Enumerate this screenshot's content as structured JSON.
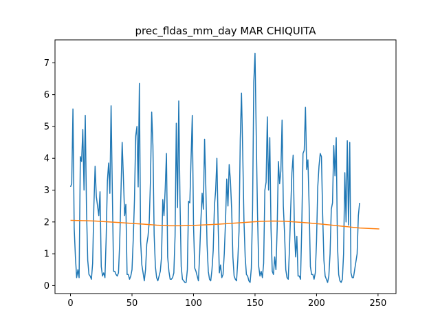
{
  "chart_data": {
    "type": "line",
    "title": "prec_fldas_mm_day MAR CHIQUITA",
    "xlabel": "",
    "ylabel": "",
    "xlim": [
      -12.6,
      264.6
    ],
    "ylim": [
      -0.25,
      7.72
    ],
    "x_ticks": [
      0,
      50,
      100,
      150,
      200,
      250
    ],
    "y_ticks": [
      0,
      1,
      2,
      3,
      4,
      5,
      6,
      7
    ],
    "grid": false,
    "legend": "none",
    "colors": {
      "series1": "#1f77b4",
      "series2": "#ff7f0e"
    },
    "series": [
      {
        "values": [
          3.1,
          3.2,
          5.55,
          1.8,
          0.9,
          0.25,
          0.5,
          0.25,
          4.05,
          3.9,
          4.9,
          3.0,
          5.35,
          2.4,
          0.8,
          0.35,
          0.3,
          0.2,
          0.7,
          2.5,
          3.75,
          2.8,
          2.5,
          2.2,
          2.95,
          0.6,
          0.3,
          0.4,
          0.25,
          1.5,
          3.3,
          3.85,
          2.9,
          5.65,
          3.0,
          0.45,
          0.45,
          0.35,
          0.3,
          0.4,
          1.35,
          2.9,
          4.5,
          3.4,
          2.2,
          2.55,
          0.35,
          0.35,
          0.2,
          0.3,
          0.5,
          1.45,
          2.7,
          4.7,
          5.0,
          3.1,
          6.35,
          1.4,
          0.65,
          0.4,
          0.15,
          0.5,
          1.3,
          1.55,
          2.0,
          3.3,
          5.45,
          4.4,
          1.6,
          0.6,
          0.25,
          0.15,
          0.3,
          0.45,
          0.9,
          2.7,
          2.2,
          3.05,
          4.15,
          0.9,
          0.45,
          0.2,
          0.2,
          0.25,
          0.4,
          1.55,
          5.1,
          2.45,
          5.8,
          2.7,
          0.6,
          0.2,
          0.15,
          0.1,
          0.1,
          0.5,
          2.65,
          2.6,
          4.0,
          5.35,
          1.9,
          0.55,
          0.45,
          0.3,
          0.15,
          1.0,
          2.05,
          2.9,
          2.4,
          4.6,
          3.1,
          1.3,
          0.45,
          0.2,
          0.15,
          0.5,
          1.1,
          2.5,
          3.0,
          4.0,
          1.95,
          0.4,
          0.65,
          0.25,
          0.35,
          1.0,
          2.0,
          3.35,
          2.5,
          3.8,
          3.3,
          2.4,
          0.9,
          0.3,
          0.2,
          0.15,
          0.8,
          1.7,
          4.6,
          6.05,
          4.2,
          2.05,
          0.9,
          0.35,
          0.3,
          0.15,
          0.1,
          0.55,
          2.4,
          6.4,
          7.3,
          4.7,
          2.3,
          0.6,
          0.3,
          0.45,
          0.25,
          0.7,
          3.0,
          3.25,
          5.3,
          3.0,
          4.65,
          1.8,
          0.45,
          0.35,
          0.9,
          0.5,
          1.8,
          3.9,
          3.2,
          3.6,
          5.2,
          2.5,
          1.65,
          0.5,
          0.25,
          0.2,
          1.15,
          2.4,
          3.55,
          4.1,
          1.8,
          0.9,
          1.55,
          0.3,
          0.3,
          0.2,
          1.85,
          4.15,
          4.25,
          5.6,
          3.65,
          3.95,
          2.5,
          0.6,
          0.35,
          0.35,
          0.2,
          0.4,
          1.4,
          3.1,
          3.75,
          4.15,
          4.05,
          2.2,
          0.8,
          0.3,
          0.2,
          0.1,
          0.3,
          1.0,
          2.4,
          2.6,
          4.4,
          3.45,
          4.65,
          1.3,
          0.35,
          0.15,
          0.1,
          0.2,
          1.0,
          3.55,
          2.0,
          4.55,
          1.9,
          4.5,
          0.4,
          0.25,
          0.25,
          0.5,
          0.75,
          1.0,
          2.2,
          2.6
        ]
      },
      {
        "x": [
          0,
          20,
          40,
          60,
          70,
          80,
          90,
          100,
          120,
          140,
          155,
          165,
          175,
          190,
          205,
          220,
          235,
          251
        ],
        "values": [
          2.05,
          2.03,
          1.98,
          1.93,
          1.9,
          1.88,
          1.88,
          1.89,
          1.93,
          1.98,
          2.02,
          2.03,
          2.02,
          1.98,
          1.93,
          1.87,
          1.81,
          1.78
        ]
      }
    ]
  }
}
